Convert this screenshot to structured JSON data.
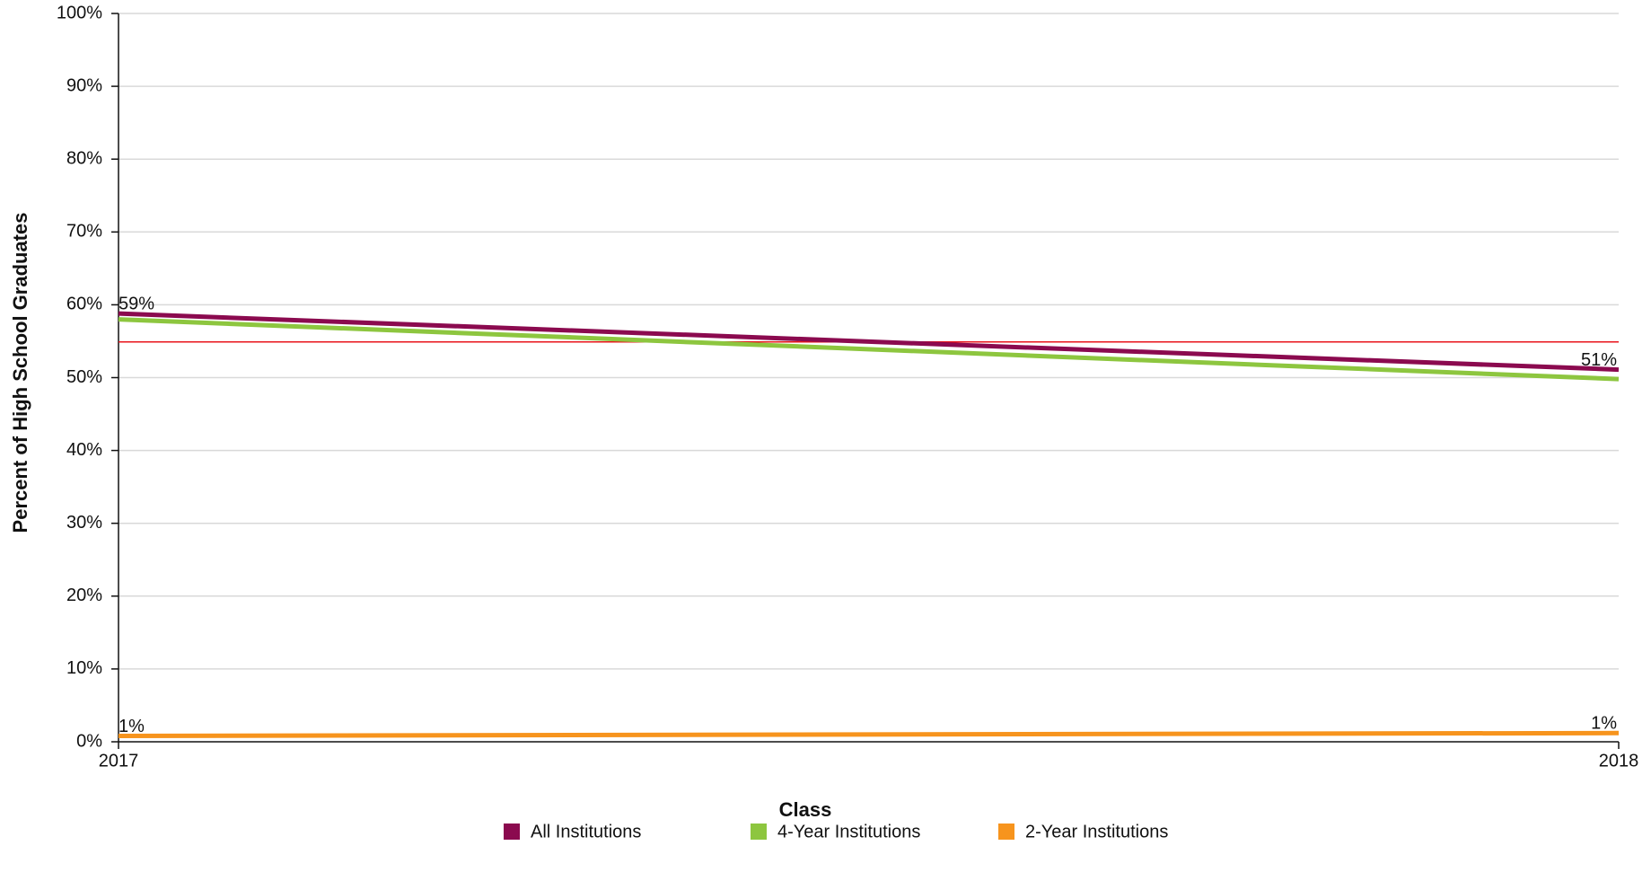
{
  "chart_data": {
    "type": "line",
    "x_label": "Class",
    "y_label": "Percent of High School Graduates",
    "x": [
      2017,
      2018
    ],
    "xlim": [
      2017,
      2018
    ],
    "xticks": [
      2017,
      2018
    ],
    "ylim": [
      0,
      100
    ],
    "yticks": [
      {
        "value": 0,
        "label": "0%"
      },
      {
        "value": 10,
        "label": "10%"
      },
      {
        "value": 20,
        "label": "20%"
      },
      {
        "value": 30,
        "label": "30%"
      },
      {
        "value": 40,
        "label": "40%"
      },
      {
        "value": 50,
        "label": "50%"
      },
      {
        "value": 60,
        "label": "60%"
      },
      {
        "value": 70,
        "label": "70%"
      },
      {
        "value": 80,
        "label": "80%"
      },
      {
        "value": 90,
        "label": "90%"
      },
      {
        "value": 100,
        "label": "100%"
      }
    ],
    "grid": true,
    "legend": "bottom",
    "reference_line": {
      "value": 54.9,
      "color": "#e8141b"
    },
    "series": [
      {
        "name": "All Institutions",
        "color": "#8b0a4f",
        "values": [
          58.8,
          51.1
        ],
        "value_labels": [
          "59%",
          "51%"
        ]
      },
      {
        "name": "4-Year Institutions",
        "color": "#8dc63f",
        "values": [
          58.0,
          49.8
        ]
      },
      {
        "name": "2-Year Institutions",
        "color": "#f7941d",
        "values": [
          0.8,
          1.2
        ],
        "value_labels": [
          "1%",
          "1%"
        ]
      }
    ]
  }
}
